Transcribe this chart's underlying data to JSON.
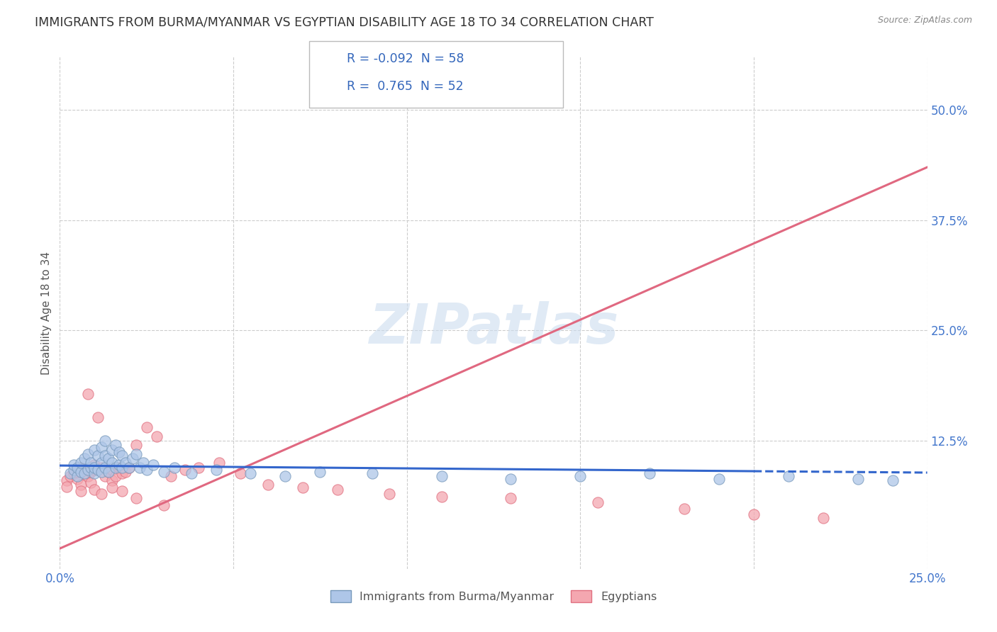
{
  "title": "IMMIGRANTS FROM BURMA/MYANMAR VS EGYPTIAN DISABILITY AGE 18 TO 34 CORRELATION CHART",
  "source": "Source: ZipAtlas.com",
  "ylabel": "Disability Age 18 to 34",
  "xlim": [
    0.0,
    0.25
  ],
  "ylim": [
    -0.02,
    0.56
  ],
  "ytick_labels": [
    "12.5%",
    "25.0%",
    "37.5%",
    "50.0%"
  ],
  "ytick_vals": [
    0.125,
    0.25,
    0.375,
    0.5
  ],
  "xtick_vals": [
    0.0,
    0.25
  ],
  "xtick_labels": [
    "0.0%",
    "25.0%"
  ],
  "legend_series": [
    {
      "label": "Immigrants from Burma/Myanmar",
      "color": "#aec6e8",
      "border": "#7799bb",
      "R": "-0.092",
      "N": "58"
    },
    {
      "label": "Egyptians",
      "color": "#f4a7b0",
      "border": "#e07080",
      "R": "0.765",
      "N": "52"
    }
  ],
  "watermark": "ZIPatlas",
  "background_color": "#ffffff",
  "grid_color": "#cccccc",
  "title_color": "#333333",
  "tick_color": "#4477cc",
  "blue_scatter_x": [
    0.003,
    0.004,
    0.004,
    0.005,
    0.005,
    0.006,
    0.006,
    0.007,
    0.007,
    0.008,
    0.008,
    0.009,
    0.009,
    0.01,
    0.01,
    0.01,
    0.011,
    0.011,
    0.012,
    0.012,
    0.012,
    0.013,
    0.013,
    0.013,
    0.014,
    0.014,
    0.015,
    0.015,
    0.016,
    0.016,
    0.017,
    0.017,
    0.018,
    0.018,
    0.019,
    0.02,
    0.021,
    0.022,
    0.023,
    0.024,
    0.025,
    0.027,
    0.03,
    0.033,
    0.038,
    0.045,
    0.055,
    0.065,
    0.075,
    0.09,
    0.11,
    0.13,
    0.15,
    0.17,
    0.19,
    0.21,
    0.23,
    0.24
  ],
  "blue_scatter_y": [
    0.088,
    0.092,
    0.098,
    0.085,
    0.095,
    0.09,
    0.1,
    0.105,
    0.088,
    0.092,
    0.11,
    0.095,
    0.1,
    0.088,
    0.095,
    0.115,
    0.092,
    0.108,
    0.09,
    0.1,
    0.118,
    0.095,
    0.108,
    0.125,
    0.09,
    0.105,
    0.1,
    0.115,
    0.095,
    0.12,
    0.098,
    0.112,
    0.095,
    0.108,
    0.1,
    0.095,
    0.105,
    0.11,
    0.095,
    0.1,
    0.092,
    0.098,
    0.09,
    0.095,
    0.088,
    0.092,
    0.088,
    0.085,
    0.09,
    0.088,
    0.085,
    0.082,
    0.085,
    0.088,
    0.082,
    0.085,
    0.082,
    0.08
  ],
  "blue_line_x": [
    0.0,
    0.2,
    0.25
  ],
  "blue_line_y": [
    0.097,
    0.091,
    0.089
  ],
  "blue_line_solid_end": 0.2,
  "blue_line_color": "#3366cc",
  "pink_scatter_x": [
    0.002,
    0.003,
    0.004,
    0.005,
    0.005,
    0.006,
    0.006,
    0.007,
    0.007,
    0.008,
    0.008,
    0.009,
    0.01,
    0.01,
    0.011,
    0.012,
    0.013,
    0.014,
    0.015,
    0.015,
    0.016,
    0.017,
    0.018,
    0.019,
    0.02,
    0.022,
    0.025,
    0.028,
    0.032,
    0.036,
    0.04,
    0.046,
    0.052,
    0.06,
    0.07,
    0.08,
    0.095,
    0.11,
    0.13,
    0.155,
    0.18,
    0.2,
    0.22,
    0.002,
    0.006,
    0.009,
    0.01,
    0.012,
    0.015,
    0.018,
    0.022,
    0.03
  ],
  "pink_scatter_y": [
    0.08,
    0.085,
    0.088,
    0.082,
    0.09,
    0.075,
    0.095,
    0.092,
    0.088,
    0.085,
    0.178,
    0.09,
    0.092,
    0.098,
    0.152,
    0.095,
    0.085,
    0.09,
    0.092,
    0.08,
    0.085,
    0.095,
    0.088,
    0.09,
    0.095,
    0.12,
    0.14,
    0.13,
    0.085,
    0.092,
    0.095,
    0.1,
    0.088,
    0.075,
    0.072,
    0.07,
    0.065,
    0.062,
    0.06,
    0.055,
    0.048,
    0.042,
    0.038,
    0.073,
    0.068,
    0.078,
    0.07,
    0.065,
    0.072,
    0.068,
    0.06,
    0.052
  ],
  "pink_line_x": [
    0.0,
    0.25
  ],
  "pink_line_y": [
    0.003,
    0.435
  ],
  "pink_line_color": "#e06880"
}
